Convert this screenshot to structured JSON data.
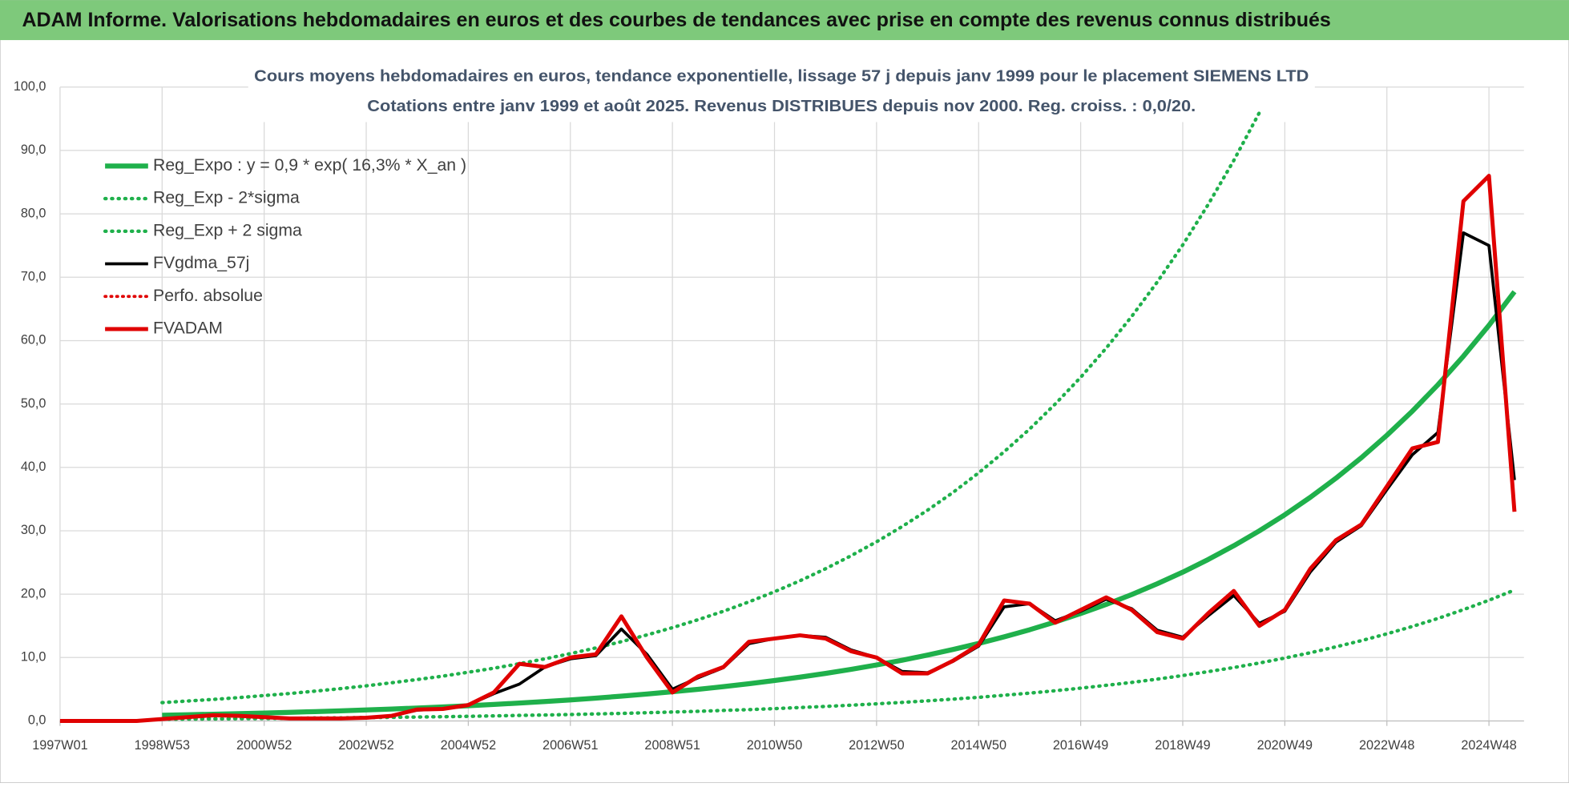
{
  "header": {
    "title": "ADAM Informe. Valorisations hebdomadaires en euros et des courbes de tendances avec prise en compte des revenus connus distribués"
  },
  "chart_data": {
    "type": "line",
    "title": "Cours moyens hebdomadaires en euros, tendance exponentielle, lissage 57 j depuis janv 1999 pour le placement SIEMENS LTD",
    "subtitle": "Cotations entre janv 1999 et août 2025.  Revenus DISTRIBUES depuis nov 2000. Reg. croiss. : 0,0/20.",
    "categories": [
      "1997W01",
      null,
      null,
      null,
      "1998W53",
      null,
      null,
      null,
      "2000W52",
      null,
      null,
      null,
      "2002W52",
      null,
      null,
      null,
      "2004W52",
      null,
      null,
      null,
      "2006W51",
      null,
      null,
      null,
      "2008W51",
      null,
      null,
      null,
      "2010W50",
      null,
      null,
      null,
      "2012W50",
      null,
      null,
      null,
      "2014W50",
      null,
      null,
      null,
      "2016W49",
      null,
      null,
      null,
      "2018W49",
      null,
      null,
      null,
      "2020W49",
      null,
      null,
      null,
      "2022W48",
      null,
      null,
      null,
      "2024W48",
      null
    ],
    "ylim": [
      0,
      100
    ],
    "yticks": [
      {
        "value": 0,
        "label": "0,0"
      },
      {
        "value": 10,
        "label": "10,0"
      },
      {
        "value": 20,
        "label": "20,0"
      },
      {
        "value": 30,
        "label": "30,0"
      },
      {
        "value": 40,
        "label": "40,0"
      },
      {
        "value": 50,
        "label": "50,0"
      },
      {
        "value": 60,
        "label": "60,0"
      },
      {
        "value": 70,
        "label": "70,0"
      },
      {
        "value": 80,
        "label": "80,0"
      },
      {
        "value": 90,
        "label": "90,0"
      },
      {
        "value": 100,
        "label": "100,0"
      }
    ],
    "grid": true,
    "legend": "upper left",
    "series": [
      {
        "name": "Reg_Expo : y = 0,9 * exp( 16,3% *  X_an )",
        "color": "#1fb04b",
        "style": "solid",
        "width": 5,
        "values": [
          null,
          null,
          null,
          null,
          0.9,
          0.98,
          1.06,
          1.15,
          1.25,
          1.35,
          1.47,
          1.59,
          1.73,
          1.88,
          2.04,
          2.21,
          2.4,
          2.6,
          2.82,
          3.06,
          3.32,
          3.6,
          3.91,
          4.24,
          4.6,
          4.99,
          5.41,
          5.87,
          6.37,
          6.91,
          7.5,
          8.14,
          8.83,
          9.58,
          10.39,
          11.27,
          12.23,
          13.27,
          14.39,
          15.62,
          16.94,
          18.38,
          19.94,
          21.64,
          23.47,
          25.47,
          27.63,
          29.98,
          32.52,
          35.28,
          38.28,
          41.53,
          45.06,
          48.88,
          53.03,
          57.54,
          62.42,
          67.72
        ]
      },
      {
        "name": "Reg_Exp - 2*sigma",
        "color": "#1fb04b",
        "style": "dotted",
        "width": 3.5,
        "values": [
          null,
          null,
          null,
          null,
          0.27,
          0.3,
          0.32,
          0.35,
          0.38,
          0.41,
          0.45,
          0.48,
          0.53,
          0.57,
          0.62,
          0.67,
          0.73,
          0.79,
          0.86,
          0.93,
          1.01,
          1.1,
          1.19,
          1.29,
          1.4,
          1.52,
          1.65,
          1.79,
          1.94,
          2.11,
          2.29,
          2.48,
          2.69,
          2.92,
          3.17,
          3.44,
          3.73,
          4.05,
          4.39,
          4.76,
          5.17,
          5.61,
          6.08,
          6.6,
          7.16,
          7.77,
          8.43,
          9.14,
          9.92,
          10.76,
          11.68,
          12.67,
          13.74,
          14.91,
          16.17,
          17.55,
          19.04,
          20.65
        ]
      },
      {
        "name": "Reg_Exp + 2 sigma",
        "color": "#1fb04b",
        "style": "dotted",
        "width": 3.5,
        "values": [
          null,
          null,
          null,
          null,
          2.88,
          3.14,
          3.39,
          3.68,
          4.0,
          4.32,
          4.7,
          5.09,
          5.54,
          6.02,
          6.53,
          7.07,
          7.68,
          8.32,
          9.02,
          9.79,
          10.62,
          11.52,
          12.51,
          13.57,
          14.72,
          15.97,
          17.31,
          18.78,
          20.38,
          22.11,
          24.0,
          26.05,
          28.26,
          30.66,
          33.25,
          36.06,
          39.14,
          42.46,
          46.05,
          49.98,
          54.21,
          58.82,
          63.81,
          69.25,
          75.1,
          81.5,
          88.42,
          95.94,
          null,
          null,
          null,
          null,
          null,
          null,
          null,
          null,
          null,
          null
        ]
      },
      {
        "name": "FVgdma_57j",
        "color": "#000000",
        "style": "solid",
        "width": 3,
        "values": [
          0,
          0,
          0,
          0,
          0.3,
          0.6,
          0.8,
          0.8,
          0.6,
          0.4,
          0.4,
          0.4,
          0.5,
          0.8,
          1.7,
          1.9,
          2.5,
          4.3,
          5.8,
          8.5,
          9.8,
          10.3,
          14.5,
          10.5,
          5.0,
          6.8,
          8.4,
          12.2,
          13.0,
          13.5,
          13.2,
          11.2,
          10.0,
          7.8,
          7.6,
          9.4,
          11.8,
          18.0,
          18.5,
          15.8,
          17.3,
          19.2,
          17.7,
          14.3,
          13.2,
          16.6,
          19.8,
          15.4,
          17.3,
          23.5,
          28.2,
          30.8,
          36.5,
          42.0,
          45.5,
          77.0,
          75.0,
          38.0
        ]
      },
      {
        "name": "Perfo. absolue",
        "color": "#e00000",
        "style": "dotted",
        "width": 3,
        "values": [
          0,
          0,
          0,
          0,
          0.3,
          0.6,
          0.9,
          0.8,
          0.6,
          0.4,
          0.4,
          0.4,
          0.5,
          0.8,
          1.8,
          1.9,
          2.5,
          4.5,
          9.0,
          8.5,
          10.0,
          10.5,
          16.5,
          10.0,
          4.5,
          7.0,
          8.5,
          12.5,
          13.0,
          13.5,
          13.0,
          11.0,
          10.0,
          7.5,
          7.5,
          9.5,
          12.0,
          19.0,
          18.5,
          15.5,
          17.5,
          19.5,
          17.5,
          14.0,
          13.0,
          17.0,
          20.5,
          15.0,
          17.5,
          24.0,
          28.5,
          31.0,
          37.0,
          43.0,
          44.0,
          82.0,
          86.0,
          33.0
        ]
      },
      {
        "name": "FVADAM",
        "color": "#e00000",
        "style": "solid",
        "width": 4,
        "values": [
          0,
          0,
          0,
          0,
          0.3,
          0.6,
          0.9,
          0.8,
          0.6,
          0.4,
          0.4,
          0.4,
          0.5,
          0.8,
          1.8,
          1.9,
          2.5,
          4.5,
          9.0,
          8.5,
          10.0,
          10.5,
          16.5,
          10.0,
          4.5,
          7.0,
          8.5,
          12.5,
          13.0,
          13.5,
          13.0,
          11.0,
          10.0,
          7.5,
          7.5,
          9.5,
          12.0,
          19.0,
          18.5,
          15.5,
          17.5,
          19.5,
          17.5,
          14.0,
          13.0,
          17.0,
          20.5,
          15.0,
          17.5,
          24.0,
          28.5,
          31.0,
          37.0,
          43.0,
          44.0,
          82.0,
          86.0,
          33.0
        ]
      }
    ]
  }
}
